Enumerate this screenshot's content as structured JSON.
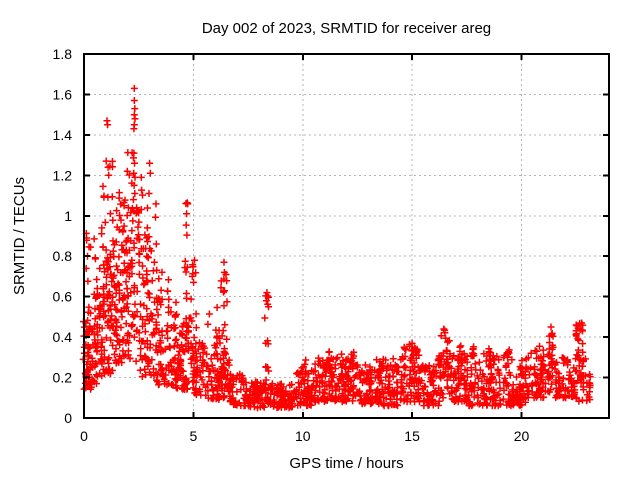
{
  "chart_data": {
    "type": "scatter",
    "title": "Day 002 of 2023, SRMTID for receiver areg",
    "xlabel": "GPS time / hours",
    "ylabel": "SRMTID / TECUs",
    "legend": "none",
    "grid": "dashed-gray-at-major-ticks",
    "grid_color": "#b5b5b5",
    "border_color": "#000000",
    "background": "#ffffff",
    "marker": {
      "shape": "plus",
      "size": 7,
      "color": "#ff0000"
    },
    "x_axis": {
      "label": "GPS time / hours",
      "range": [
        0,
        24
      ],
      "ticks": [
        {
          "v": 0,
          "t": "0"
        },
        {
          "v": 5,
          "t": "5"
        },
        {
          "v": 10,
          "t": "10"
        },
        {
          "v": 15,
          "t": "15"
        },
        {
          "v": 20,
          "t": "20"
        }
      ]
    },
    "y_axis": {
      "label": "SRMTID / TECUs",
      "range": [
        0,
        1.8
      ],
      "ticks": [
        {
          "v": 0,
          "t": "0"
        },
        {
          "v": 0.2,
          "t": "0.2"
        },
        {
          "v": 0.4,
          "t": "0.4"
        },
        {
          "v": 0.6,
          "t": "0.6"
        },
        {
          "v": 0.8,
          "t": "0.8"
        },
        {
          "v": 1,
          "t": "1"
        },
        {
          "v": 1.2,
          "t": "1.2"
        },
        {
          "v": 1.4,
          "t": "1.4"
        },
        {
          "v": 1.6,
          "t": "1.6"
        },
        {
          "v": 1.8,
          "t": "1.8"
        }
      ]
    },
    "seed": 42,
    "x_quant": 0.1,
    "x_jitter": 0.04,
    "clusters": [
      {
        "x": [
          0.02,
          0.35
        ],
        "n": 55,
        "y": [
          0.14,
          0.48
        ],
        "skew": 1.4
      },
      {
        "x": [
          0.02,
          0.3
        ],
        "n": 10,
        "y": [
          0.45,
          0.92
        ],
        "skew": 1.0
      },
      {
        "x": [
          0.35,
          0.85
        ],
        "n": 58,
        "y": [
          0.17,
          0.62
        ],
        "skew": 1.3
      },
      {
        "x": [
          0.4,
          0.85
        ],
        "n": 10,
        "y": [
          0.6,
          0.97
        ],
        "skew": 1.0
      },
      {
        "x": [
          0.85,
          1.3
        ],
        "n": 65,
        "y": [
          0.22,
          0.85
        ],
        "skew": 1.2
      },
      {
        "x": [
          0.85,
          1.3
        ],
        "n": 12,
        "y": [
          0.82,
          1.28
        ],
        "skew": 1.0
      },
      {
        "x": [
          1.3,
          1.85
        ],
        "n": 72,
        "y": [
          0.27,
          0.95
        ],
        "skew": 1.2
      },
      {
        "x": [
          1.3,
          1.85
        ],
        "n": 10,
        "y": [
          0.92,
          1.22
        ],
        "skew": 1.0
      },
      {
        "x": [
          1.85,
          2.6
        ],
        "n": 85,
        "y": [
          0.27,
          1.05
        ],
        "skew": 1.1
      },
      {
        "x": [
          1.85,
          2.6
        ],
        "n": 10,
        "y": [
          1.0,
          1.32
        ],
        "skew": 1.0
      },
      {
        "x": [
          2.6,
          3.3
        ],
        "n": 75,
        "y": [
          0.2,
          0.9
        ],
        "skew": 1.25
      },
      {
        "x": [
          2.6,
          3.3
        ],
        "n": 6,
        "y": [
          0.88,
          1.12
        ],
        "skew": 1.0
      },
      {
        "x": [
          3.3,
          4.1
        ],
        "n": 70,
        "y": [
          0.16,
          0.62
        ],
        "skew": 1.3
      },
      {
        "x": [
          3.3,
          4.1
        ],
        "n": 6,
        "y": [
          0.6,
          0.8
        ],
        "skew": 1.0
      },
      {
        "x": [
          4.1,
          4.6
        ],
        "n": 55,
        "y": [
          0.14,
          0.46
        ],
        "skew": 1.3
      },
      {
        "x": [
          4.1,
          4.6
        ],
        "n": 4,
        "y": [
          0.45,
          0.62
        ],
        "skew": 1.0
      },
      {
        "x": [
          4.6,
          5.0
        ],
        "n": 30,
        "y": [
          0.14,
          0.5
        ],
        "skew": 1.2
      },
      {
        "x": [
          4.62,
          4.76
        ],
        "n": 12,
        "y": [
          0.45,
          1.07
        ],
        "skew": 1.0
      },
      {
        "x": [
          4.9,
          5.1
        ],
        "n": 6,
        "y": [
          0.5,
          0.78
        ],
        "skew": 1.0
      },
      {
        "x": [
          5.0,
          5.7
        ],
        "n": 50,
        "y": [
          0.11,
          0.38
        ],
        "skew": 1.35
      },
      {
        "x": [
          5.0,
          5.7
        ],
        "n": 4,
        "y": [
          0.38,
          0.55
        ],
        "skew": 1.0
      },
      {
        "x": [
          5.7,
          6.25
        ],
        "n": 45,
        "y": [
          0.09,
          0.32
        ],
        "skew": 1.35
      },
      {
        "x": [
          6.0,
          6.3
        ],
        "n": 12,
        "y": [
          0.3,
          0.55
        ],
        "skew": 1.0
      },
      {
        "x": [
          6.32,
          6.5
        ],
        "n": 16,
        "y": [
          0.3,
          0.78
        ],
        "skew": 1.1
      },
      {
        "x": [
          6.25,
          6.6
        ],
        "n": 30,
        "y": [
          0.1,
          0.32
        ],
        "skew": 1.3
      },
      {
        "x": [
          6.6,
          7.6
        ],
        "n": 65,
        "y": [
          0.06,
          0.22
        ],
        "skew": 1.25
      },
      {
        "x": [
          7.6,
          8.25
        ],
        "n": 60,
        "y": [
          0.05,
          0.18
        ],
        "skew": 1.25
      },
      {
        "x": [
          8.3,
          8.45
        ],
        "n": 14,
        "y": [
          0.18,
          0.62
        ],
        "skew": 1.1
      },
      {
        "x": [
          8.25,
          8.55
        ],
        "n": 15,
        "y": [
          0.06,
          0.2
        ],
        "skew": 1.2
      },
      {
        "x": [
          8.55,
          9.6
        ],
        "n": 75,
        "y": [
          0.05,
          0.17
        ],
        "skew": 1.2
      },
      {
        "x": [
          9.6,
          10.6
        ],
        "n": 75,
        "y": [
          0.06,
          0.24
        ],
        "skew": 1.3
      },
      {
        "x": [
          10.0,
          10.15
        ],
        "n": 6,
        "y": [
          0.18,
          0.3
        ],
        "skew": 1.0
      },
      {
        "x": [
          10.6,
          11.6
        ],
        "n": 85,
        "y": [
          0.08,
          0.3
        ],
        "skew": 1.4
      },
      {
        "x": [
          11.1,
          11.3
        ],
        "n": 8,
        "y": [
          0.22,
          0.33
        ],
        "skew": 1.0
      },
      {
        "x": [
          11.6,
          12.6
        ],
        "n": 85,
        "y": [
          0.08,
          0.32
        ],
        "skew": 1.4
      },
      {
        "x": [
          12.2,
          12.4
        ],
        "n": 8,
        "y": [
          0.22,
          0.34
        ],
        "skew": 1.0
      },
      {
        "x": [
          12.6,
          13.6
        ],
        "n": 80,
        "y": [
          0.07,
          0.28
        ],
        "skew": 1.4
      },
      {
        "x": [
          13.4,
          13.6
        ],
        "n": 6,
        "y": [
          0.2,
          0.32
        ],
        "skew": 1.0
      },
      {
        "x": [
          13.6,
          14.6
        ],
        "n": 75,
        "y": [
          0.06,
          0.3
        ],
        "skew": 1.4
      },
      {
        "x": [
          14.6,
          15.35
        ],
        "n": 60,
        "y": [
          0.08,
          0.36
        ],
        "skew": 1.45
      },
      {
        "x": [
          14.9,
          15.15
        ],
        "n": 10,
        "y": [
          0.25,
          0.37
        ],
        "skew": 1.0
      },
      {
        "x": [
          15.35,
          16.2
        ],
        "n": 60,
        "y": [
          0.06,
          0.26
        ],
        "skew": 1.3
      },
      {
        "x": [
          16.2,
          16.75
        ],
        "n": 32,
        "y": [
          0.1,
          0.32
        ],
        "skew": 1.2
      },
      {
        "x": [
          16.25,
          16.7
        ],
        "n": 20,
        "y": [
          0.25,
          0.44
        ],
        "skew": 1.0
      },
      {
        "x": [
          16.75,
          17.6
        ],
        "n": 60,
        "y": [
          0.08,
          0.33
        ],
        "skew": 1.4
      },
      {
        "x": [
          17.1,
          17.3
        ],
        "n": 8,
        "y": [
          0.25,
          0.37
        ],
        "skew": 1.0
      },
      {
        "x": [
          17.65,
          17.85
        ],
        "n": 8,
        "y": [
          0.25,
          0.37
        ],
        "skew": 1.0
      },
      {
        "x": [
          17.6,
          18.85
        ],
        "n": 90,
        "y": [
          0.06,
          0.32
        ],
        "skew": 1.4
      },
      {
        "x": [
          18.4,
          18.6
        ],
        "n": 8,
        "y": [
          0.25,
          0.36
        ],
        "skew": 1.0
      },
      {
        "x": [
          18.85,
          20.2
        ],
        "n": 95,
        "y": [
          0.06,
          0.32
        ],
        "skew": 1.4
      },
      {
        "x": [
          19.25,
          19.45
        ],
        "n": 8,
        "y": [
          0.25,
          0.36
        ],
        "skew": 1.0
      },
      {
        "x": [
          20.2,
          21.2
        ],
        "n": 70,
        "y": [
          0.1,
          0.34
        ],
        "skew": 1.4
      },
      {
        "x": [
          20.8,
          21.0
        ],
        "n": 8,
        "y": [
          0.22,
          0.36
        ],
        "skew": 1.0
      },
      {
        "x": [
          21.2,
          21.55
        ],
        "n": 16,
        "y": [
          0.12,
          0.3
        ],
        "skew": 1.2
      },
      {
        "x": [
          21.25,
          21.45
        ],
        "n": 14,
        "y": [
          0.25,
          0.45
        ],
        "skew": 1.0
      },
      {
        "x": [
          21.55,
          22.4
        ],
        "n": 60,
        "y": [
          0.1,
          0.3
        ],
        "skew": 1.3
      },
      {
        "x": [
          22.4,
          22.95
        ],
        "n": 26,
        "y": [
          0.08,
          0.3
        ],
        "skew": 1.2
      },
      {
        "x": [
          22.45,
          22.6
        ],
        "n": 14,
        "y": [
          0.2,
          0.46
        ],
        "skew": 1.0
      },
      {
        "x": [
          22.7,
          22.85
        ],
        "n": 14,
        "y": [
          0.2,
          0.47
        ],
        "skew": 1.0
      },
      {
        "x": [
          22.95,
          23.15
        ],
        "n": 12,
        "y": [
          0.07,
          0.22
        ],
        "skew": 1.2
      }
    ],
    "outliers": [
      [
        0.12,
        0.89
      ],
      [
        0.16,
        0.8
      ],
      [
        0.1,
        0.74
      ],
      [
        1.05,
        1.47
      ],
      [
        1.08,
        1.45
      ],
      [
        1.1,
        1.24
      ],
      [
        1.13,
        1.2
      ],
      [
        2.3,
        1.63
      ],
      [
        2.3,
        1.57
      ],
      [
        2.32,
        1.53
      ],
      [
        2.3,
        1.5
      ],
      [
        2.33,
        1.48
      ],
      [
        2.3,
        1.45
      ],
      [
        2.28,
        1.43
      ],
      [
        2.28,
        1.31
      ],
      [
        2.31,
        1.26
      ],
      [
        2.27,
        1.21
      ],
      [
        2.33,
        1.19
      ],
      [
        2.29,
        1.15
      ],
      [
        2.32,
        1.11
      ],
      [
        2.26,
        1.08
      ],
      [
        3.0,
        1.26
      ],
      [
        3.03,
        1.21
      ],
      [
        2.97,
        1.11
      ],
      [
        2.62,
        1.19
      ],
      [
        4.66,
        1.06
      ],
      [
        4.69,
        1.01
      ],
      [
        5.05,
        0.78
      ],
      [
        4.95,
        0.7
      ],
      [
        6.4,
        0.77
      ],
      [
        6.42,
        0.72
      ],
      [
        8.36,
        0.62
      ],
      [
        8.34,
        0.58
      ],
      [
        15.0,
        0.37
      ],
      [
        16.45,
        0.44
      ],
      [
        21.35,
        0.45
      ],
      [
        22.5,
        0.46
      ],
      [
        22.75,
        0.47
      ]
    ]
  }
}
